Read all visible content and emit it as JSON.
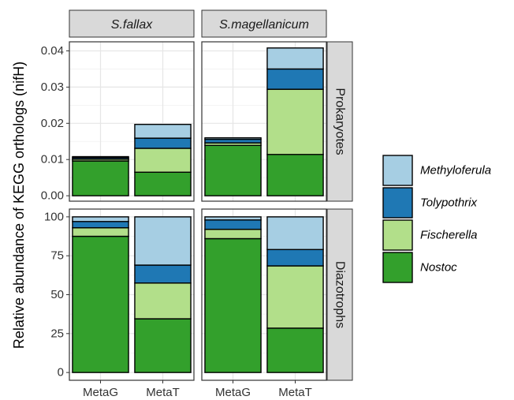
{
  "chart_data": {
    "type": "bar",
    "stacked": true,
    "ylabel": "Relative abundance of KEGG orthologs (nifH)",
    "columns": [
      "S.fallax",
      "S.magellanicum"
    ],
    "rows": [
      "Prokaryotes",
      "Diazotrophs"
    ],
    "categories": [
      "MetaG",
      "MetaT"
    ],
    "series_order": [
      "Nostoc",
      "Fischerella",
      "Tolypothrix",
      "Methyloferula"
    ],
    "legend": {
      "placement": "right",
      "items": [
        {
          "name": "Methyloferula",
          "color": "#a6cee3"
        },
        {
          "name": "Tolypothrix",
          "color": "#1f78b4"
        },
        {
          "name": "Fischerella",
          "color": "#b2df8a"
        },
        {
          "name": "Nostoc",
          "color": "#33a02c"
        }
      ]
    },
    "panels": [
      {
        "column": "S.fallax",
        "row": "Prokaryotes",
        "ylim": [
          -0.0015,
          0.0425
        ],
        "ticks": [
          0.0,
          0.01,
          0.02,
          0.03,
          0.04
        ],
        "tick_labels": [
          "0.00",
          "0.01",
          "0.02",
          "0.03",
          "0.04"
        ],
        "series": [
          {
            "name": "Nostoc",
            "values": [
              0.0096,
              0.0065
            ]
          },
          {
            "name": "Fischerella",
            "values": [
              0.0005,
              0.0066
            ]
          },
          {
            "name": "Tolypothrix",
            "values": [
              0.0004,
              0.0028
            ]
          },
          {
            "name": "Methyloferula",
            "values": [
              0.0003,
              0.0038
            ]
          }
        ]
      },
      {
        "column": "S.magellanicum",
        "row": "Prokaryotes",
        "ylim": [
          -0.0015,
          0.0425
        ],
        "ticks": [
          0.0,
          0.01,
          0.02,
          0.03,
          0.04
        ],
        "tick_labels": [
          "0.00",
          "0.01",
          "0.02",
          "0.03",
          "0.04"
        ],
        "series": [
          {
            "name": "Nostoc",
            "values": [
              0.0139,
              0.0114
            ]
          },
          {
            "name": "Fischerella",
            "values": [
              0.0007,
              0.018
            ]
          },
          {
            "name": "Tolypothrix",
            "values": [
              0.001,
              0.0056
            ]
          },
          {
            "name": "Methyloferula",
            "values": [
              0.0004,
              0.0058
            ]
          }
        ]
      },
      {
        "column": "S.fallax",
        "row": "Diazotrophs",
        "ylim": [
          -5,
          105
        ],
        "ticks": [
          0,
          25,
          50,
          75,
          100
        ],
        "tick_labels": [
          "0",
          "25",
          "50",
          "75",
          "100"
        ],
        "series": [
          {
            "name": "Nostoc",
            "values": [
              87.5,
              34.5
            ]
          },
          {
            "name": "Fischerella",
            "values": [
              5.5,
              23.0
            ]
          },
          {
            "name": "Tolypothrix",
            "values": [
              4.0,
              11.5
            ]
          },
          {
            "name": "Methyloferula",
            "values": [
              3.0,
              31.0
            ]
          }
        ]
      },
      {
        "column": "S.magellanicum",
        "row": "Diazotrophs",
        "ylim": [
          -5,
          105
        ],
        "ticks": [
          0,
          25,
          50,
          75,
          100
        ],
        "tick_labels": [
          "0",
          "25",
          "50",
          "75",
          "100"
        ],
        "series": [
          {
            "name": "Nostoc",
            "values": [
              86.0,
              28.5
            ]
          },
          {
            "name": "Fischerella",
            "values": [
              6.0,
              40.0
            ]
          },
          {
            "name": "Tolypothrix",
            "values": [
              6.0,
              10.5
            ]
          },
          {
            "name": "Methyloferula",
            "values": [
              2.0,
              21.0
            ]
          }
        ]
      }
    ]
  }
}
